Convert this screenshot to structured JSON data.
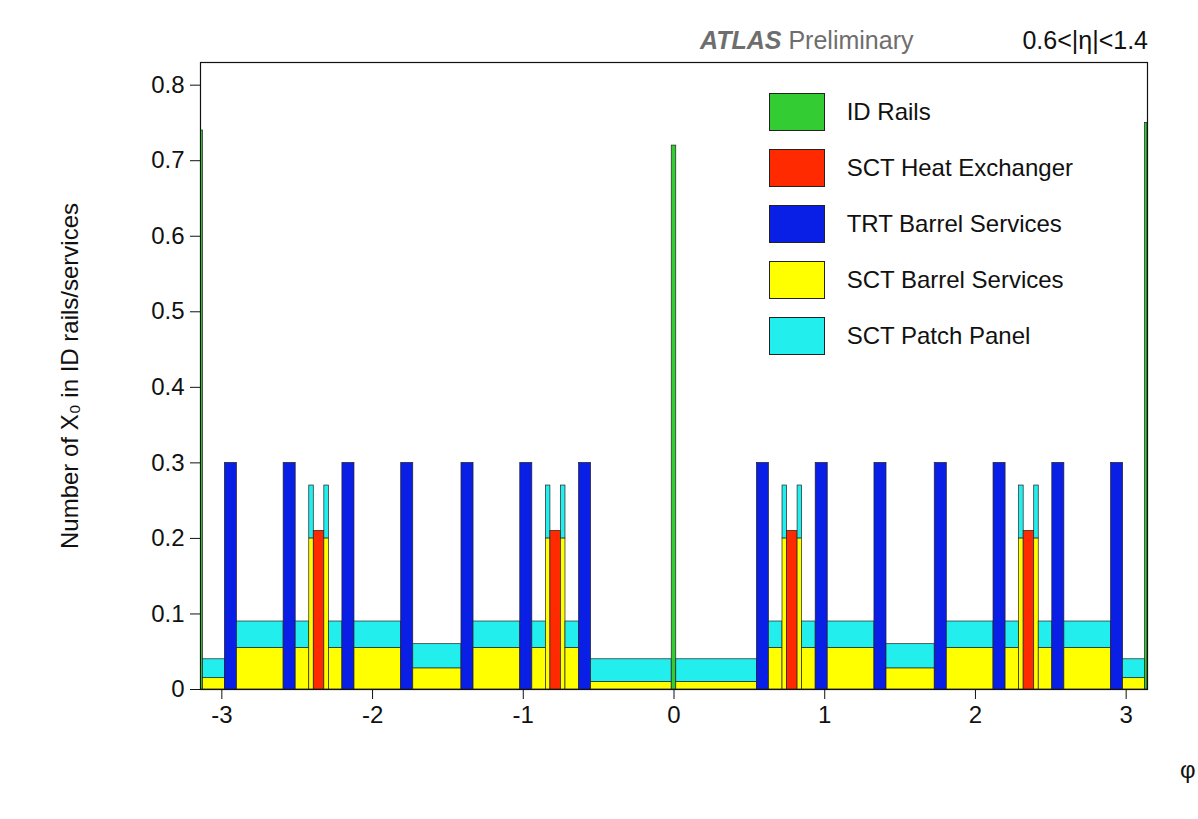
{
  "chart_data": {
    "type": "histogram",
    "title": "ATLAS Preliminary",
    "annotation": "0.6<|η|<1.4",
    "x_label": "φ",
    "y_label": "Number of X₀ in ID rails/services",
    "xlim": [
      -3.1416,
      3.1416
    ],
    "xticks": [
      -3,
      -2,
      -1,
      0,
      1,
      2,
      3
    ],
    "ylim": [
      0,
      0.83
    ],
    "yticks": [
      0,
      0.1,
      0.2,
      0.3,
      0.4,
      0.5,
      0.6,
      0.7,
      0.8
    ],
    "stacked": true,
    "legend": "top-right",
    "bins": [
      -3.1416,
      -3.125,
      -2.98,
      -2.9,
      -2.59,
      -2.51,
      -2.42,
      -2.39,
      -2.32,
      -2.29,
      -2.2,
      -2.12,
      -1.81,
      -1.73,
      -1.41,
      -1.33,
      -1.02,
      -0.94,
      -0.85,
      -0.82,
      -0.75,
      -0.72,
      -0.63,
      -0.55,
      -0.015,
      0.015,
      0.55,
      0.63,
      0.72,
      0.75,
      0.82,
      0.85,
      0.94,
      1.02,
      1.33,
      1.41,
      1.73,
      1.81,
      2.12,
      2.2,
      2.29,
      2.32,
      2.39,
      2.42,
      2.51,
      2.59,
      2.9,
      2.98,
      3.125,
      3.1416
    ],
    "series": [
      {
        "name": "ID Rails",
        "color": "#33cc33",
        "values": [
          0.74,
          0,
          0,
          0,
          0,
          0,
          0,
          0,
          0,
          0,
          0,
          0,
          0,
          0,
          0,
          0,
          0,
          0,
          0,
          0,
          0,
          0,
          0,
          0,
          0.72,
          0,
          0,
          0,
          0,
          0,
          0,
          0,
          0,
          0,
          0,
          0,
          0,
          0,
          0,
          0,
          0,
          0,
          0,
          0,
          0,
          0,
          0,
          0,
          0.75
        ]
      },
      {
        "name": "SCT Heat Exchanger",
        "color": "#ff2a00",
        "values": [
          0,
          0,
          0,
          0,
          0,
          0,
          0,
          0.21,
          0,
          0,
          0,
          0,
          0,
          0,
          0,
          0,
          0,
          0,
          0,
          0.21,
          0,
          0,
          0,
          0,
          0,
          0,
          0,
          0,
          0,
          0.21,
          0,
          0,
          0,
          0,
          0,
          0,
          0,
          0,
          0,
          0,
          0,
          0.21,
          0,
          0,
          0,
          0,
          0,
          0,
          0
        ]
      },
      {
        "name": "TRT Barrel Services",
        "color": "#0a1fe6",
        "values": [
          0,
          0,
          0.3,
          0,
          0.3,
          0,
          0,
          0,
          0,
          0,
          0.3,
          0,
          0.3,
          0,
          0.3,
          0,
          0.3,
          0,
          0,
          0,
          0,
          0,
          0.3,
          0,
          0,
          0,
          0.3,
          0,
          0,
          0,
          0,
          0,
          0.3,
          0,
          0.3,
          0,
          0.3,
          0,
          0.3,
          0,
          0,
          0,
          0,
          0,
          0.3,
          0,
          0.3,
          0,
          0
        ]
      },
      {
        "name": "SCT Barrel Services",
        "color": "#ffff00",
        "values": [
          0,
          0.015,
          0,
          0.055,
          0,
          0.055,
          0.2,
          0,
          0.2,
          0.055,
          0,
          0.055,
          0,
          0.028,
          0,
          0.055,
          0,
          0.055,
          0.2,
          0,
          0.2,
          0.055,
          0,
          0.01,
          0,
          0.01,
          0,
          0.055,
          0.2,
          0,
          0.2,
          0.055,
          0,
          0.055,
          0,
          0.028,
          0,
          0.055,
          0,
          0.055,
          0.2,
          0,
          0.2,
          0.055,
          0,
          0.055,
          0,
          0.015,
          0
        ]
      },
      {
        "name": "SCT Patch Panel",
        "color": "#22eeee",
        "values": [
          0,
          0.025,
          0,
          0.035,
          0,
          0.035,
          0.07,
          0,
          0.07,
          0.035,
          0,
          0.035,
          0,
          0.032,
          0,
          0.035,
          0,
          0.035,
          0.07,
          0,
          0.07,
          0.035,
          0,
          0.03,
          0,
          0.03,
          0,
          0.035,
          0.07,
          0,
          0.07,
          0.035,
          0,
          0.035,
          0,
          0.032,
          0,
          0.035,
          0,
          0.035,
          0.07,
          0,
          0.07,
          0.035,
          0,
          0.035,
          0,
          0.025,
          0
        ]
      }
    ]
  }
}
